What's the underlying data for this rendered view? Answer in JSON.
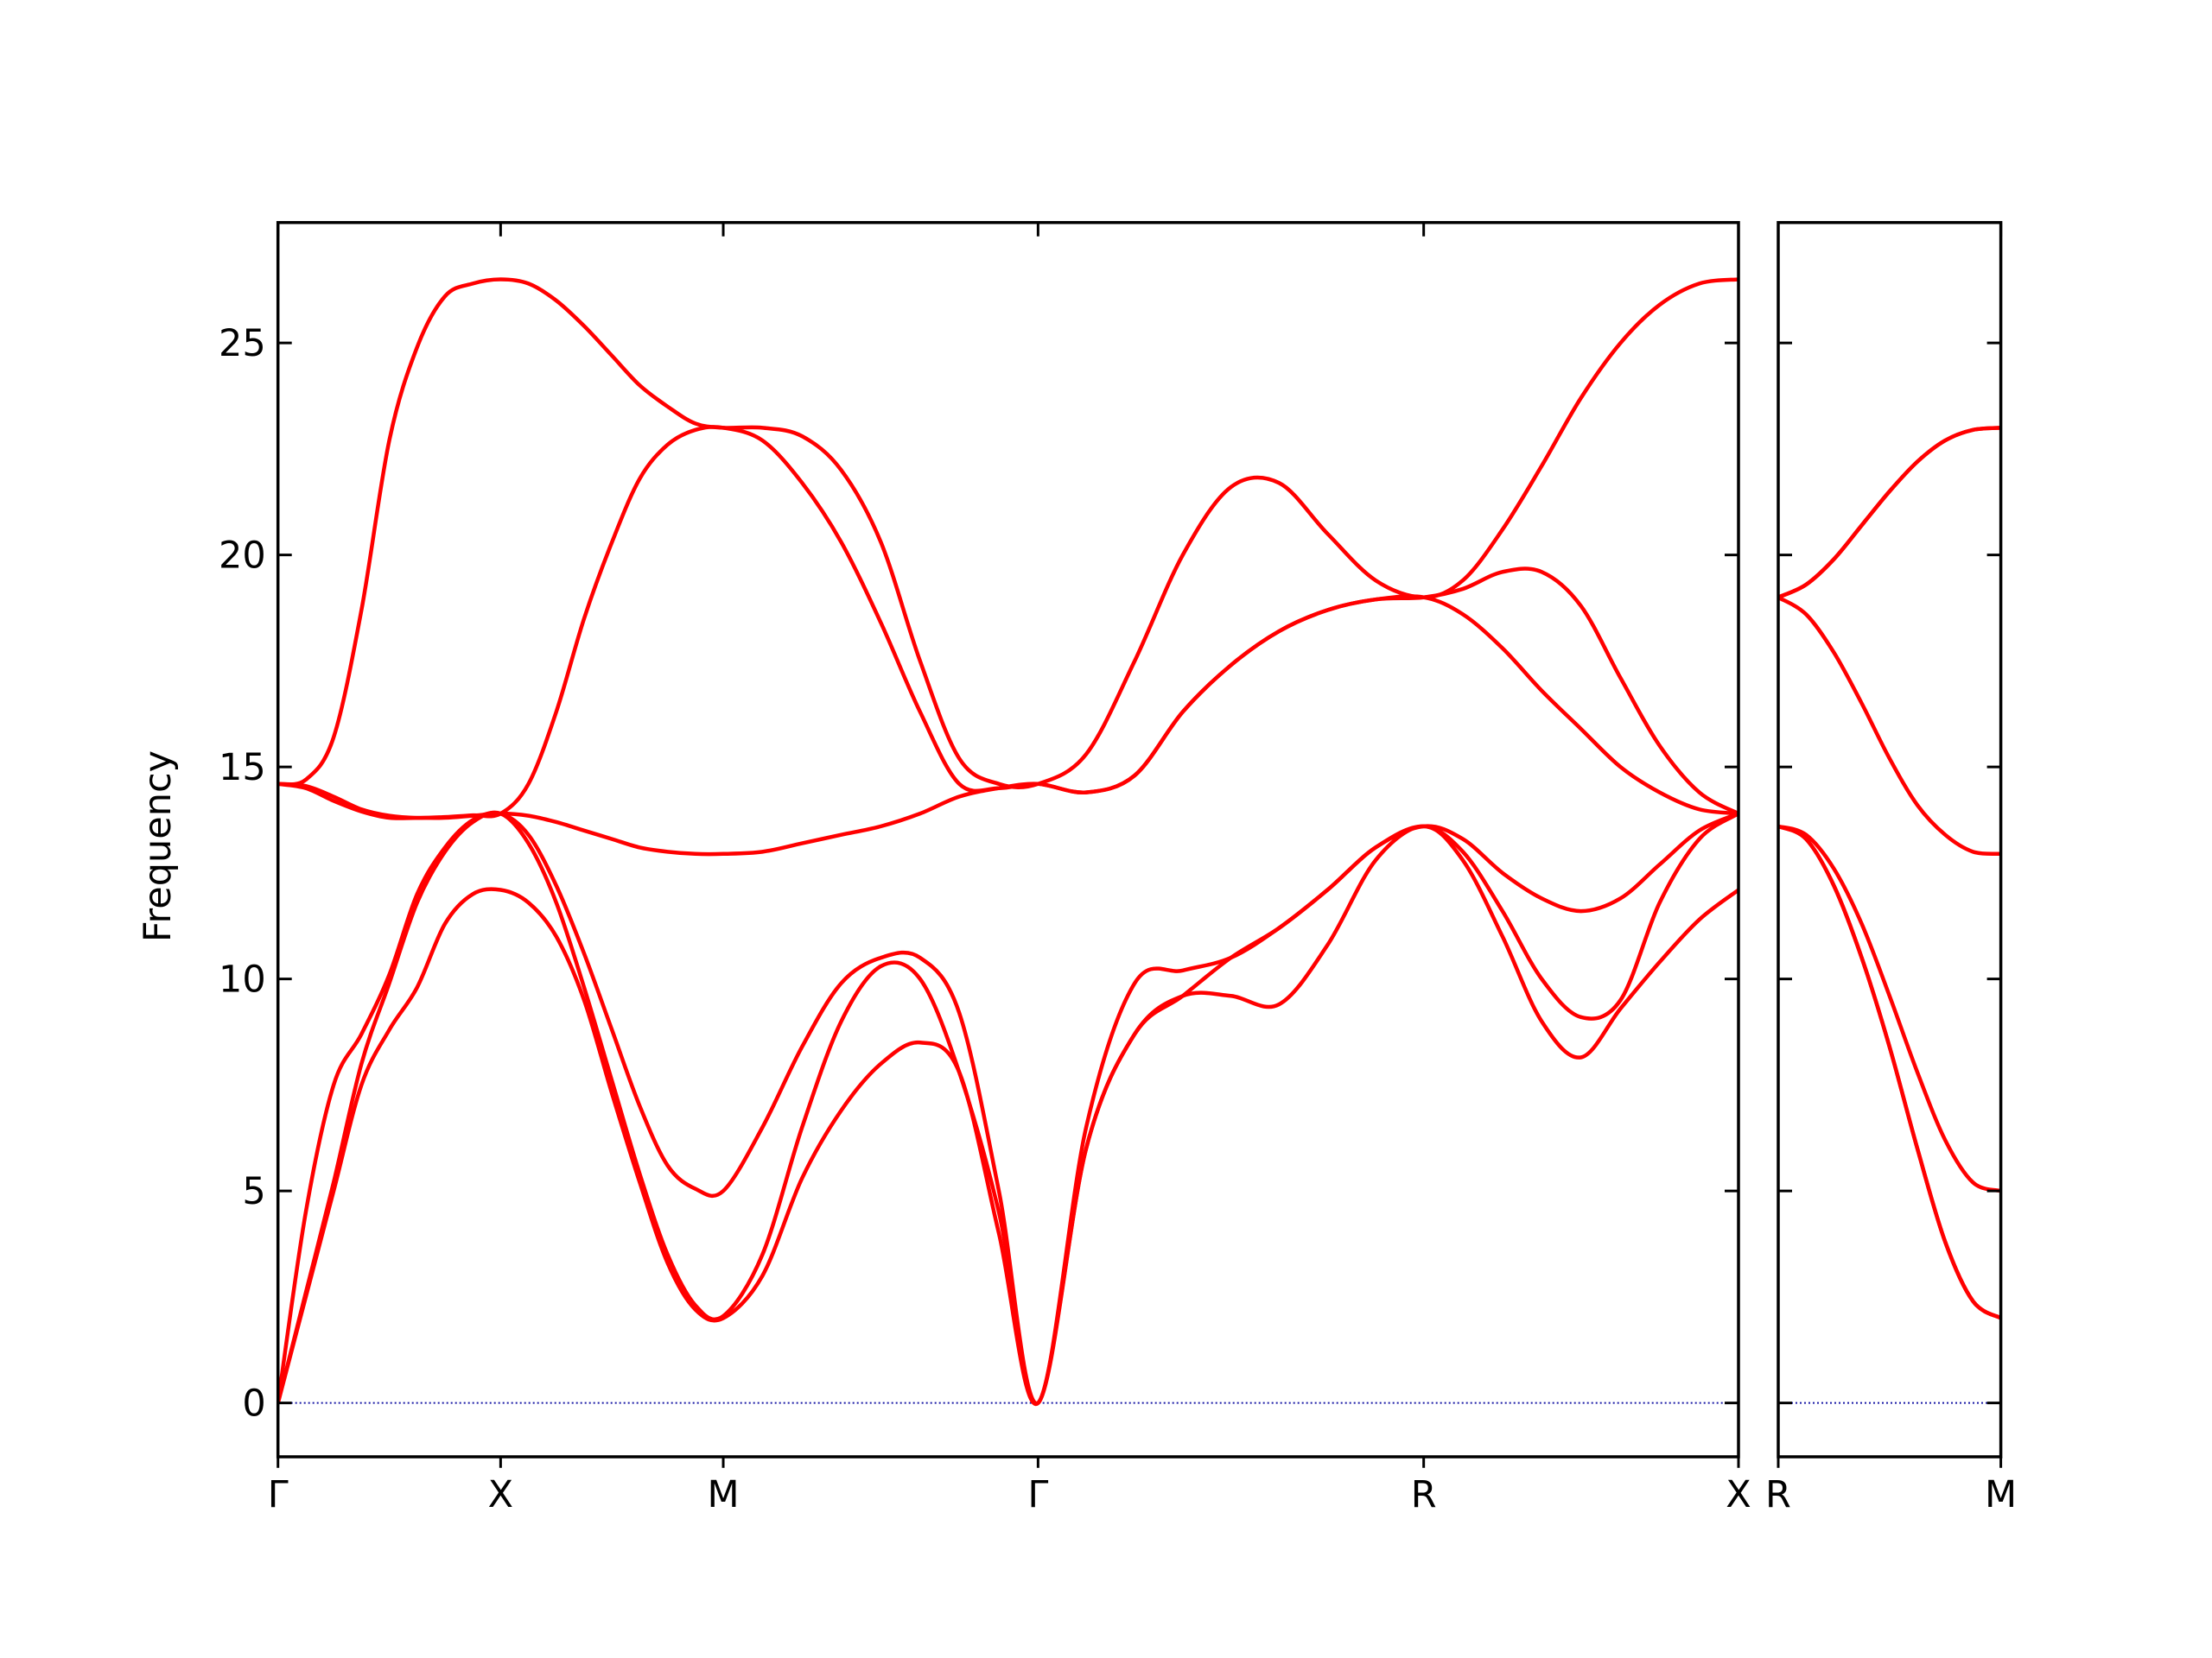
{
  "chart_data": [
    {
      "type": "line",
      "ylabel": "Frequency",
      "x": [
        0,
        0.0625,
        0.125,
        0.1875,
        0.25,
        0.3125,
        0.375,
        0.4375,
        0.5,
        0.5625,
        0.625,
        0.6875,
        0.75,
        0.8125,
        0.875,
        0.9375,
        1.0,
        1.088,
        1.177,
        1.265,
        1.354,
        1.442,
        1.53,
        1.619,
        1.707,
        1.815,
        1.924,
        2.032,
        2.14,
        2.248,
        2.357,
        2.465,
        2.573,
        2.661,
        2.75,
        2.838,
        2.926,
        3.015,
        3.103,
        3.192,
        3.28
      ],
      "series": [
        {
          "color": "#ff0000",
          "values": [
            0,
            2.5,
            5.0,
            7.5,
            8.8,
            9.8,
            11.3,
            12.0,
            12.1,
            11.8,
            11.0,
            9.5,
            7.3,
            5.2,
            3.3,
            2.2,
            2.0,
            3.0,
            5.3,
            6.9,
            8.0,
            8.5,
            7.8,
            4.0,
            0,
            6.0,
            8.7,
            9.6,
            9.6,
            9.4,
            10.8,
            12.8,
            13.6,
            12.8,
            11.0,
            9.0,
            8.15,
            9.3,
            10.4,
            11.4,
            12.1
          ]
        },
        {
          "color": "#ff0000",
          "values": [
            0,
            2.6,
            5.2,
            8.0,
            9.9,
            11.8,
            13.0,
            13.7,
            13.9,
            13.2,
            11.8,
            9.8,
            7.6,
            5.4,
            3.5,
            2.3,
            2.05,
            3.5,
            6.5,
            9.0,
            10.3,
            10.0,
            7.8,
            4.5,
            0,
            6.0,
            8.7,
            9.6,
            10.5,
            11.2,
            12.1,
            13.1,
            13.6,
            13.0,
            11.6,
            10.0,
            9.1,
            9.5,
            11.8,
            13.3,
            13.9
          ]
        },
        {
          "color": "#ff0000",
          "values": [
            0,
            4.5,
            7.5,
            8.7,
            10.1,
            12.0,
            13.1,
            13.75,
            13.9,
            13.4,
            12.2,
            10.6,
            8.8,
            7.0,
            5.6,
            5.05,
            5.0,
            6.5,
            8.4,
            9.9,
            10.5,
            10.5,
            9.2,
            5.0,
            0,
            6.5,
            9.9,
            10.2,
            10.5,
            11.2,
            12.1,
            13.1,
            13.6,
            13.3,
            12.5,
            11.9,
            11.6,
            11.9,
            12.7,
            13.5,
            13.9
          ]
        },
        {
          "color": "#ff0000",
          "values": [
            14.6,
            14.5,
            14.2,
            13.95,
            13.8,
            13.8,
            13.8,
            13.85,
            13.9,
            13.85,
            13.7,
            13.5,
            13.3,
            13.1,
            13.0,
            12.95,
            12.95,
            13.0,
            13.2,
            13.4,
            13.6,
            13.9,
            14.3,
            14.5,
            14.6,
            14.4,
            14.8,
            16.3,
            17.4,
            18.2,
            18.7,
            18.95,
            19.0,
            18.6,
            17.8,
            16.8,
            15.9,
            15.0,
            14.4,
            14.0,
            13.9
          ]
        },
        {
          "color": "#ff0000",
          "values": [
            14.6,
            14.55,
            14.3,
            14.0,
            13.85,
            13.8,
            13.82,
            13.86,
            13.9,
            14.6,
            16.3,
            18.5,
            20.3,
            21.8,
            22.6,
            22.95,
            23.0,
            22.7,
            21.7,
            20.3,
            18.4,
            16.3,
            14.6,
            14.5,
            14.6,
            14.4,
            14.8,
            16.3,
            17.4,
            18.2,
            18.7,
            18.95,
            19.0,
            19.2,
            19.6,
            19.6,
            18.8,
            17.1,
            15.5,
            14.4,
            13.9
          ]
        },
        {
          "color": "#ff0000",
          "values": [
            14.6,
            14.7,
            15.7,
            18.7,
            22.7,
            24.9,
            26.1,
            26.4,
            26.5,
            26.4,
            26.0,
            25.4,
            24.7,
            24.0,
            23.5,
            23.1,
            23.0,
            23.0,
            22.8,
            22.0,
            20.3,
            17.5,
            15.2,
            14.6,
            14.6,
            15.3,
            17.5,
            20.0,
            21.6,
            21.7,
            20.5,
            19.4,
            19.0,
            19.4,
            20.6,
            22.1,
            23.7,
            25.0,
            25.9,
            26.4,
            26.5
          ]
        }
      ],
      "xlim": [
        0,
        3.28
      ],
      "ylim": [
        -1.27,
        27.84
      ],
      "xticks": [
        {
          "value": 0,
          "label": "Γ"
        },
        {
          "value": 0.5,
          "label": "X"
        },
        {
          "value": 1.0,
          "label": "M"
        },
        {
          "value": 1.707,
          "label": "Γ"
        },
        {
          "value": 2.573,
          "label": "R"
        },
        {
          "value": 3.28,
          "label": "X"
        }
      ],
      "yticks": [
        0,
        5,
        10,
        15,
        20,
        25
      ],
      "hlines": [
        0
      ],
      "hline_color": "#1a1aa6"
    },
    {
      "type": "line",
      "x": [
        0,
        0.0625,
        0.125,
        0.1875,
        0.25,
        0.3125,
        0.375,
        0.4375,
        0.5
      ],
      "series": [
        {
          "color": "#ff0000",
          "values": [
            13.6,
            13.3,
            12.2,
            10.5,
            8.4,
            6.0,
            3.8,
            2.4,
            2.0
          ]
        },
        {
          "color": "#ff0000",
          "values": [
            13.6,
            13.3,
            12.2,
            10.5,
            8.4,
            6.0,
            3.8,
            2.4,
            2.0
          ]
        },
        {
          "color": "#ff0000",
          "values": [
            13.6,
            13.4,
            12.6,
            11.3,
            9.6,
            7.8,
            6.2,
            5.2,
            5.0
          ]
        },
        {
          "color": "#ff0000",
          "values": [
            19.0,
            18.6,
            17.7,
            16.5,
            15.2,
            14.1,
            13.4,
            13.0,
            12.95
          ]
        },
        {
          "color": "#ff0000",
          "values": [
            19.0,
            19.3,
            19.9,
            20.7,
            21.5,
            22.2,
            22.7,
            22.95,
            23.0
          ]
        },
        {
          "color": "#ff0000",
          "values": [
            19.0,
            19.3,
            19.9,
            20.7,
            21.5,
            22.2,
            22.7,
            22.95,
            23.0
          ]
        }
      ],
      "xlim": [
        0,
        0.5
      ],
      "ylim": [
        -1.27,
        27.84
      ],
      "xticks": [
        {
          "value": 0,
          "label": "R"
        },
        {
          "value": 0.5,
          "label": "M"
        }
      ],
      "hlines": [
        0
      ],
      "hline_color": "#1a1aa6"
    }
  ]
}
